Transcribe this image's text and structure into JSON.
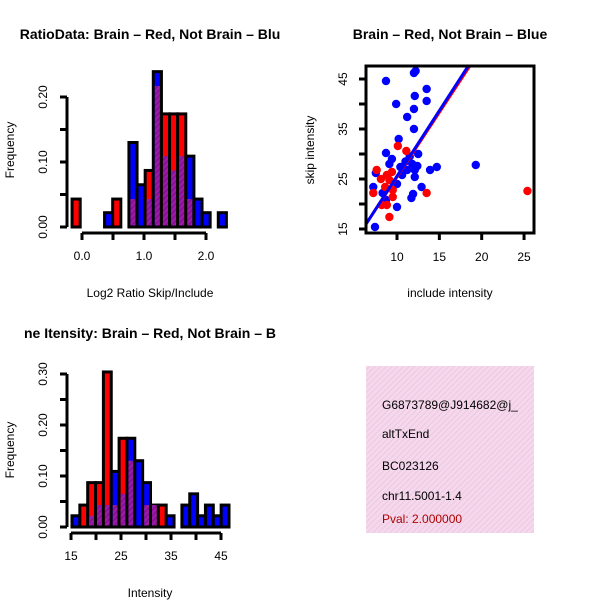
{
  "colors": {
    "red": "#ff0000",
    "blue": "#0000ff",
    "overlap": "#9a1aa8",
    "panel_bg": "#f7d6ee",
    "pval": "#b00000"
  },
  "chart_data": [
    {
      "type": "bar",
      "title": "RatioData: Brain – Red, Not Brain – Blu",
      "xlabel": "Log2 Ratio Skip/Include",
      "ylabel": "Frequency",
      "bin_start": -0.16,
      "bin_width": 0.131,
      "series": [
        {
          "name": "Brain",
          "color": "red",
          "values": [
            0.043,
            0,
            0,
            0,
            0,
            0.043,
            0,
            0.043,
            0,
            0.087,
            0.217,
            0.174,
            0.174,
            0.174,
            0.043,
            0,
            0,
            0,
            0
          ]
        },
        {
          "name": "Not Brain",
          "color": "blue",
          "values": [
            0,
            0,
            0,
            0,
            0.022,
            0,
            0,
            0.13,
            0.065,
            0.043,
            0.239,
            0.109,
            0.087,
            0.109,
            0.109,
            0.043,
            0.022,
            0,
            0.022
          ]
        }
      ],
      "x_ticks": [
        {
          "v": 0,
          "label": "0.0"
        },
        {
          "v": 0.5,
          "label": ""
        },
        {
          "v": 1,
          "label": "1.0"
        },
        {
          "v": 1.5,
          "label": ""
        },
        {
          "v": 2,
          "label": "2.0"
        }
      ],
      "y_ticks": [
        {
          "v": 0,
          "label": "0.00"
        },
        {
          "v": 0.05,
          "label": ""
        },
        {
          "v": 0.1,
          "label": "0.10"
        },
        {
          "v": 0.15,
          "label": ""
        },
        {
          "v": 0.2,
          "label": "0.20"
        }
      ]
    },
    {
      "type": "scatter",
      "title": "Brain – Red, Not Brain – Blue",
      "xlabel": "include intensity",
      "ylabel": "skip intensity",
      "xlim": [
        6.3,
        26.2
      ],
      "ylim": [
        14.2,
        47.6
      ],
      "series": [
        {
          "name": "Not Brain",
          "color": "blue",
          "points": [
            [
              8.7,
              44.6
            ],
            [
              12.0,
              46.2
            ],
            [
              12.2,
              46.6
            ],
            [
              13.5,
              43
            ],
            [
              12.1,
              41.6
            ],
            [
              13.5,
              40.6
            ],
            [
              9.9,
              40
            ],
            [
              12.0,
              39
            ],
            [
              11.2,
              37.4
            ],
            [
              12.0,
              35
            ],
            [
              10.2,
              33
            ],
            [
              8.7,
              30.2
            ],
            [
              12.5,
              30
            ],
            [
              9.1,
              28
            ],
            [
              19.3,
              27.8
            ],
            [
              14.7,
              27.4
            ],
            [
              13.9,
              26.8
            ],
            [
              7.5,
              26.2
            ],
            [
              10.4,
              27.4
            ],
            [
              11.2,
              26.8
            ],
            [
              12.1,
              26.8
            ],
            [
              12.1,
              25.4
            ],
            [
              10,
              24
            ],
            [
              7.2,
              23.4
            ],
            [
              12.9,
              23.4
            ],
            [
              8.3,
              22.2
            ],
            [
              11.9,
              22
            ],
            [
              11.7,
              21.2
            ],
            [
              8.7,
              20.8
            ],
            [
              10,
              19.4
            ],
            [
              7.4,
              15.4
            ],
            [
              11.0,
              28.5
            ],
            [
              11.5,
              29.5
            ],
            [
              10.8,
              27.0
            ],
            [
              11.8,
              28.0
            ],
            [
              12.4,
              27.6
            ],
            [
              9.4,
              29.0
            ],
            [
              10.6,
              25.8
            ]
          ],
          "fit": {
            "intercept": -0.63,
            "slope": 2.62
          }
        },
        {
          "name": "Brain",
          "color": "red",
          "points": [
            [
              7.2,
              22.2
            ],
            [
              7.6,
              26.8
            ],
            [
              8.1,
              25
            ],
            [
              8.8,
              25.8
            ],
            [
              9.4,
              26.4
            ],
            [
              10.1,
              31.6
            ],
            [
              11.1,
              30.6
            ],
            [
              9.1,
              17.4
            ],
            [
              13.5,
              22.2
            ],
            [
              25.4,
              22.6
            ],
            [
              8.2,
              19.8
            ],
            [
              8.8,
              19.8
            ],
            [
              9.5,
              21.4
            ],
            [
              9.5,
              22.8
            ],
            [
              8.6,
              23.4
            ],
            [
              9.1,
              24.8
            ]
          ],
          "fit": {
            "intercept": -0.37,
            "slope": 2.58
          }
        }
      ],
      "x_ticks": [
        {
          "v": 10,
          "label": "10"
        },
        {
          "v": 15,
          "label": "15"
        },
        {
          "v": 20,
          "label": "20"
        },
        {
          "v": 25,
          "label": "25"
        }
      ],
      "y_ticks": [
        {
          "v": 15,
          "label": "15"
        },
        {
          "v": 20,
          "label": ""
        },
        {
          "v": 25,
          "label": "25"
        },
        {
          "v": 30,
          "label": ""
        },
        {
          "v": 35,
          "label": "35"
        },
        {
          "v": 40,
          "label": ""
        },
        {
          "v": 45,
          "label": "45"
        }
      ]
    },
    {
      "type": "bar",
      "title": "ne Itensity: Brain – Red, Not Brain – B",
      "xlabel": "Intensity",
      "ylabel": "Frequency",
      "bin_start": 15.2,
      "bin_width": 1.57,
      "series": [
        {
          "name": "Brain",
          "color": "red",
          "values": [
            0,
            0.043,
            0.087,
            0.087,
            0.304,
            0.043,
            0.174,
            0.13,
            0,
            0.043,
            0.043,
            0.043,
            0,
            0,
            0,
            0,
            0,
            0,
            0,
            0
          ]
        },
        {
          "name": "Not Brain",
          "color": "blue",
          "values": [
            0.022,
            0,
            0.022,
            0.043,
            0.043,
            0.109,
            0.065,
            0.174,
            0.13,
            0.087,
            0.043,
            0,
            0.022,
            0,
            0.043,
            0.065,
            0.022,
            0.043,
            0.022,
            0.043
          ]
        }
      ],
      "x_ticks": [
        {
          "v": 15,
          "label": "15"
        },
        {
          "v": 20,
          "label": ""
        },
        {
          "v": 25,
          "label": "25"
        },
        {
          "v": 30,
          "label": ""
        },
        {
          "v": 35,
          "label": "35"
        },
        {
          "v": 40,
          "label": ""
        },
        {
          "v": 45,
          "label": "45"
        }
      ],
      "y_ticks": [
        {
          "v": 0,
          "label": "0.00"
        },
        {
          "v": 0.05,
          "label": ""
        },
        {
          "v": 0.1,
          "label": "0.10"
        },
        {
          "v": 0.15,
          "label": ""
        },
        {
          "v": 0.2,
          "label": "0.20"
        },
        {
          "v": 0.25,
          "label": ""
        },
        {
          "v": 0.3,
          "label": "0.30"
        }
      ]
    }
  ],
  "info_panel": {
    "id": "G6873789@J914682@j_",
    "event_type": "altTxEnd",
    "accession": "BC023126",
    "locus": "chr11.5001-1.4",
    "pval": "Pval: 2.000000"
  }
}
